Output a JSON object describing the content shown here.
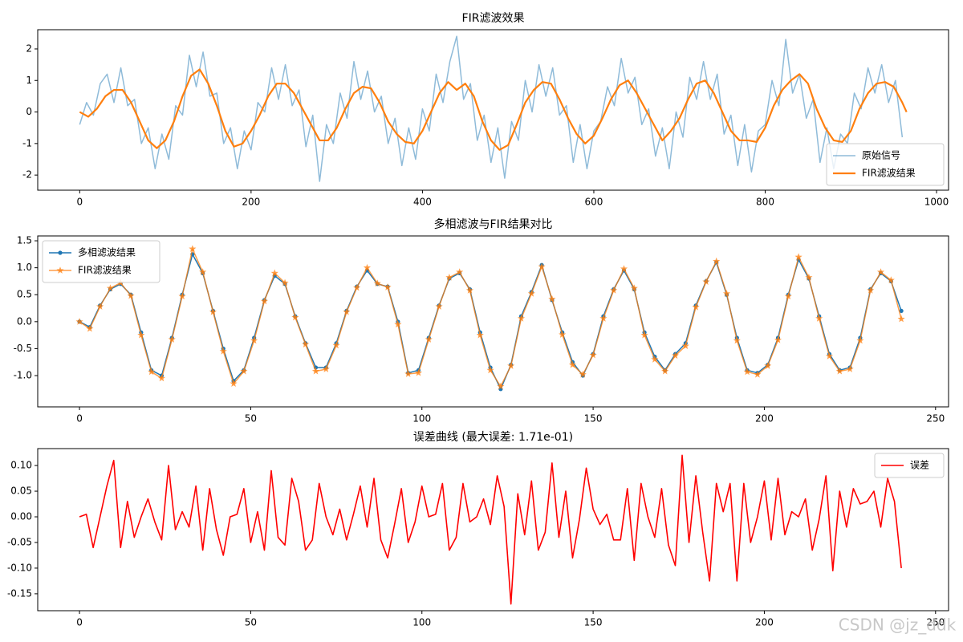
{
  "chart_data": [
    {
      "type": "line",
      "title": "FIR滤波效果",
      "legend": "lower right",
      "xlim": [
        -49,
        1014
      ],
      "ylim": [
        -2.48,
        2.61
      ],
      "xticks": [
        0,
        200,
        400,
        600,
        800,
        1000
      ],
      "yticks": [
        2,
        1,
        0,
        -1,
        -2
      ],
      "series": [
        {
          "name": "原始信号",
          "color": "#1f77b4",
          "alpha": 0.5,
          "linewidth": 1.5,
          "x": [
            0,
            8,
            16,
            24,
            32,
            40,
            48,
            56,
            64,
            72,
            80,
            88,
            96,
            104,
            112,
            120,
            128,
            136,
            144,
            152,
            160,
            168,
            176,
            184,
            192,
            200,
            208,
            216,
            224,
            232,
            240,
            248,
            256,
            264,
            272,
            280,
            288,
            296,
            304,
            312,
            320,
            328,
            336,
            344,
            352,
            360,
            368,
            376,
            384,
            392,
            400,
            408,
            416,
            424,
            432,
            440,
            448,
            456,
            464,
            472,
            480,
            488,
            496,
            504,
            512,
            520,
            528,
            536,
            544,
            552,
            560,
            568,
            576,
            584,
            592,
            600,
            608,
            616,
            624,
            632,
            640,
            648,
            656,
            664,
            672,
            680,
            688,
            696,
            704,
            712,
            720,
            728,
            736,
            744,
            752,
            760,
            768,
            776,
            784,
            792,
            800,
            808,
            816,
            824,
            832,
            840,
            848,
            856,
            864,
            872,
            880,
            888,
            896,
            904,
            912,
            920,
            928,
            936,
            944,
            952,
            960
          ],
          "values": [
            -0.4,
            0.3,
            -0.1,
            0.9,
            1.2,
            0.3,
            1.4,
            0.2,
            0.4,
            -1.0,
            -0.5,
            -1.8,
            -0.7,
            -1.5,
            0.2,
            -0.1,
            1.8,
            0.8,
            1.9,
            0.5,
            0.6,
            -1.0,
            -0.5,
            -1.8,
            -0.6,
            -1.2,
            0.3,
            0.0,
            1.4,
            0.4,
            1.5,
            0.2,
            0.7,
            -1.1,
            -0.1,
            -2.2,
            -0.4,
            -1.0,
            0.6,
            -0.2,
            1.6,
            0.4,
            1.3,
            0.0,
            0.5,
            -1.0,
            -0.2,
            -1.7,
            -0.5,
            -1.5,
            0.1,
            -0.6,
            1.2,
            0.3,
            1.6,
            2.4,
            0.4,
            0.9,
            -0.9,
            -0.1,
            -1.6,
            -0.5,
            -2.1,
            -0.3,
            -0.9,
            1.0,
            0.0,
            1.5,
            0.5,
            1.4,
            -0.1,
            0.2,
            -1.6,
            -0.4,
            -1.8,
            -0.6,
            -0.3,
            0.8,
            0.2,
            1.7,
            0.6,
            1.1,
            -0.4,
            0.1,
            -1.4,
            -0.5,
            -1.8,
            0.0,
            -0.8,
            1.1,
            0.4,
            1.6,
            0.4,
            1.2,
            -0.7,
            -0.1,
            -1.7,
            -0.4,
            -1.9,
            -0.6,
            -0.4,
            1.0,
            0.2,
            2.3,
            0.6,
            1.2,
            -0.2,
            0.4,
            -1.6,
            -0.5,
            -1.8,
            -0.7,
            -1.0,
            0.6,
            0.1,
            1.4,
            0.6,
            1.5,
            0.3,
            1.0,
            -0.8
          ]
        },
        {
          "name": "FIR滤波结果",
          "color": "#ff7f0e",
          "alpha": 1,
          "linewidth": 2.2,
          "x": [
            0,
            10,
            20,
            30,
            40,
            50,
            60,
            70,
            80,
            90,
            100,
            110,
            120,
            130,
            140,
            150,
            160,
            170,
            180,
            190,
            200,
            210,
            220,
            230,
            240,
            250,
            260,
            270,
            280,
            290,
            300,
            310,
            320,
            330,
            340,
            350,
            360,
            370,
            380,
            390,
            400,
            410,
            420,
            430,
            440,
            450,
            460,
            470,
            480,
            490,
            500,
            510,
            520,
            530,
            540,
            550,
            560,
            570,
            580,
            590,
            600,
            610,
            620,
            630,
            640,
            650,
            660,
            670,
            680,
            690,
            700,
            710,
            720,
            730,
            740,
            750,
            760,
            770,
            780,
            790,
            800,
            810,
            820,
            830,
            840,
            850,
            860,
            870,
            880,
            890,
            900,
            910,
            920,
            930,
            940,
            950,
            960,
            965
          ],
          "values": [
            0.0,
            -0.15,
            0.1,
            0.5,
            0.7,
            0.7,
            0.3,
            -0.3,
            -0.9,
            -1.15,
            -0.9,
            -0.3,
            0.5,
            1.15,
            1.35,
            0.9,
            0.2,
            -0.6,
            -1.1,
            -1.0,
            -0.6,
            -0.1,
            0.5,
            0.9,
            0.9,
            0.6,
            0.1,
            -0.4,
            -0.9,
            -0.9,
            -0.5,
            0.1,
            0.6,
            0.8,
            0.75,
            0.3,
            -0.3,
            -0.7,
            -0.95,
            -1.0,
            -0.6,
            0.0,
            0.6,
            0.95,
            0.7,
            0.9,
            0.5,
            -0.3,
            -0.9,
            -1.2,
            -1.05,
            -0.4,
            0.3,
            0.7,
            0.95,
            0.9,
            0.4,
            -0.2,
            -0.7,
            -1.0,
            -0.75,
            -0.2,
            0.4,
            0.85,
            1.0,
            0.6,
            0.1,
            -0.4,
            -0.9,
            -0.6,
            -0.2,
            0.4,
            0.9,
            1.0,
            0.6,
            0.0,
            -0.6,
            -0.9,
            -0.9,
            -0.95,
            -0.5,
            0.2,
            0.7,
            1.0,
            1.2,
            0.9,
            0.1,
            -0.5,
            -0.9,
            -0.95,
            -0.6,
            0.1,
            0.6,
            0.9,
            0.95,
            0.8,
            0.3,
            0.0
          ]
        }
      ]
    },
    {
      "type": "line",
      "title": "多相滤波与FIR结果对比",
      "legend": "upper left",
      "xlim": [
        -12.2,
        253.8
      ],
      "ylim": [
        -1.58,
        1.59
      ],
      "xticks": [
        0,
        50,
        100,
        150,
        200,
        250
      ],
      "yticks": [
        1.5,
        {
          "value": 1.0,
          "label": "1.0"
        },
        0.5,
        {
          "value": 0.0,
          "label": "0.0"
        },
        -0.5,
        {
          "value": -1.0,
          "label": "-1.0"
        }
      ],
      "x": [
        0,
        3,
        6,
        9,
        12,
        15,
        18,
        21,
        24,
        27,
        30,
        33,
        36,
        39,
        42,
        45,
        48,
        51,
        54,
        57,
        60,
        63,
        66,
        69,
        72,
        75,
        78,
        81,
        84,
        87,
        90,
        93,
        96,
        99,
        102,
        105,
        108,
        111,
        114,
        117,
        120,
        123,
        126,
        129,
        132,
        135,
        138,
        141,
        144,
        147,
        150,
        153,
        156,
        159,
        162,
        165,
        168,
        171,
        174,
        177,
        180,
        183,
        186,
        189,
        192,
        195,
        198,
        201,
        204,
        207,
        210,
        213,
        216,
        219,
        222,
        225,
        228,
        231,
        234,
        237,
        240
      ],
      "series": [
        {
          "name": "多相滤波结果",
          "color": "#1f77b4",
          "marker": "o",
          "alpha": 1,
          "linewidth": 1.5,
          "values": [
            0.0,
            -0.1,
            0.3,
            0.6,
            0.7,
            0.5,
            -0.2,
            -0.9,
            -1.0,
            -0.3,
            0.5,
            1.25,
            0.9,
            0.2,
            -0.5,
            -1.1,
            -0.9,
            -0.3,
            0.4,
            0.85,
            0.7,
            0.1,
            -0.4,
            -0.85,
            -0.85,
            -0.4,
            0.2,
            0.65,
            0.95,
            0.7,
            0.65,
            0.0,
            -0.95,
            -0.9,
            -0.3,
            0.3,
            0.8,
            0.9,
            0.6,
            -0.2,
            -0.85,
            -1.25,
            -0.8,
            0.1,
            0.55,
            1.05,
            0.4,
            -0.2,
            -0.75,
            -1.0,
            -0.6,
            0.1,
            0.6,
            0.95,
            0.6,
            -0.2,
            -0.65,
            -0.9,
            -0.6,
            -0.4,
            0.3,
            0.75,
            1.1,
            0.5,
            -0.3,
            -0.9,
            -0.95,
            -0.8,
            -0.3,
            0.5,
            1.15,
            0.8,
            0.1,
            -0.6,
            -0.9,
            -0.85,
            -0.3,
            0.6,
            0.9,
            0.75,
            0.2
          ]
        },
        {
          "name": "FIR滤波结果",
          "color": "#ff7f0e",
          "marker": "*",
          "alpha": 0.75,
          "linewidth": 1.5,
          "values": [
            0.0,
            -0.13,
            0.28,
            0.62,
            0.72,
            0.48,
            -0.25,
            -0.93,
            -1.05,
            -0.33,
            0.47,
            1.35,
            0.92,
            0.18,
            -0.55,
            -1.15,
            -0.92,
            -0.35,
            0.38,
            0.9,
            0.72,
            0.08,
            -0.42,
            -0.92,
            -0.88,
            -0.44,
            0.18,
            0.63,
            1.0,
            0.71,
            0.64,
            -0.05,
            -0.97,
            -0.95,
            -0.33,
            0.28,
            0.82,
            0.92,
            0.58,
            -0.25,
            -0.9,
            -1.2,
            -0.82,
            0.06,
            0.52,
            1.02,
            0.42,
            -0.24,
            -0.8,
            -0.98,
            -0.62,
            0.06,
            0.58,
            0.98,
            0.62,
            -0.25,
            -0.7,
            -0.92,
            -0.63,
            -0.45,
            0.27,
            0.74,
            1.12,
            0.52,
            -0.35,
            -0.93,
            -0.98,
            -0.82,
            -0.34,
            0.47,
            1.2,
            0.82,
            0.06,
            -0.64,
            -0.92,
            -0.88,
            -0.35,
            0.58,
            0.92,
            0.77,
            0.05
          ]
        }
      ]
    },
    {
      "type": "line",
      "title": "误差曲线 (最大误差: 1.71e-01)",
      "legend": "upper right",
      "xlim": [
        -12.2,
        253.8
      ],
      "ylim": [
        -0.183,
        0.133
      ],
      "xticks": [
        0,
        50,
        100,
        150,
        200,
        250
      ],
      "yticks": [
        {
          "value": 0.1,
          "label": "0.10"
        },
        0.05,
        {
          "value": 0.0,
          "label": "0.00"
        },
        -0.05,
        {
          "value": -0.1,
          "label": "-0.10"
        },
        -0.15
      ],
      "x": [
        0,
        2,
        4,
        6,
        8,
        10,
        12,
        14,
        16,
        18,
        20,
        22,
        24,
        26,
        28,
        30,
        32,
        34,
        36,
        38,
        40,
        42,
        44,
        46,
        48,
        50,
        52,
        54,
        56,
        58,
        60,
        62,
        64,
        66,
        68,
        70,
        72,
        74,
        76,
        78,
        80,
        82,
        84,
        86,
        88,
        90,
        92,
        94,
        96,
        98,
        100,
        102,
        104,
        106,
        108,
        110,
        112,
        114,
        116,
        118,
        120,
        122,
        124,
        126,
        128,
        130,
        132,
        134,
        136,
        138,
        140,
        142,
        144,
        146,
        148,
        150,
        152,
        154,
        156,
        158,
        160,
        162,
        164,
        166,
        168,
        170,
        172,
        174,
        176,
        178,
        180,
        182,
        184,
        186,
        188,
        190,
        192,
        194,
        196,
        198,
        200,
        202,
        204,
        206,
        208,
        210,
        212,
        214,
        216,
        218,
        220,
        222,
        224,
        226,
        228,
        230,
        232,
        234,
        236,
        238,
        240
      ],
      "series": [
        {
          "name": "误差",
          "color": "#ff0000",
          "alpha": 1,
          "linewidth": 1.6,
          "values": [
            0.0,
            0.005,
            -0.06,
            0.0,
            0.06,
            0.11,
            -0.06,
            0.03,
            -0.04,
            0.0,
            0.035,
            -0.01,
            -0.045,
            0.1,
            -0.025,
            0.01,
            -0.02,
            0.06,
            -0.065,
            0.055,
            -0.025,
            -0.075,
            0.0,
            0.005,
            0.055,
            -0.05,
            0.01,
            -0.065,
            0.09,
            -0.04,
            -0.055,
            0.075,
            0.03,
            -0.065,
            -0.045,
            0.065,
            0.0,
            -0.035,
            0.015,
            -0.045,
            0.005,
            0.06,
            -0.02,
            0.075,
            -0.045,
            -0.08,
            -0.015,
            0.055,
            -0.05,
            -0.01,
            0.06,
            0.0,
            0.005,
            0.065,
            -0.065,
            -0.04,
            0.065,
            -0.01,
            0.0,
            0.035,
            -0.015,
            0.08,
            0.02,
            -0.17,
            0.045,
            -0.035,
            0.07,
            -0.065,
            -0.03,
            0.105,
            -0.04,
            0.05,
            -0.08,
            -0.005,
            0.095,
            0.015,
            -0.015,
            0.005,
            -0.045,
            -0.045,
            0.055,
            -0.085,
            0.065,
            0.0,
            -0.04,
            0.055,
            -0.055,
            -0.095,
            0.12,
            -0.05,
            0.08,
            -0.03,
            -0.125,
            0.065,
            0.01,
            0.065,
            -0.125,
            0.065,
            -0.05,
            0.0,
            0.07,
            -0.045,
            0.075,
            -0.035,
            0.01,
            0.0,
            0.035,
            -0.065,
            -0.005,
            0.08,
            -0.105,
            0.05,
            -0.02,
            0.055,
            0.025,
            0.03,
            0.05,
            -0.02,
            0.075,
            0.03,
            -0.1
          ]
        }
      ]
    }
  ],
  "watermark": "CSDN @jz_ddk"
}
